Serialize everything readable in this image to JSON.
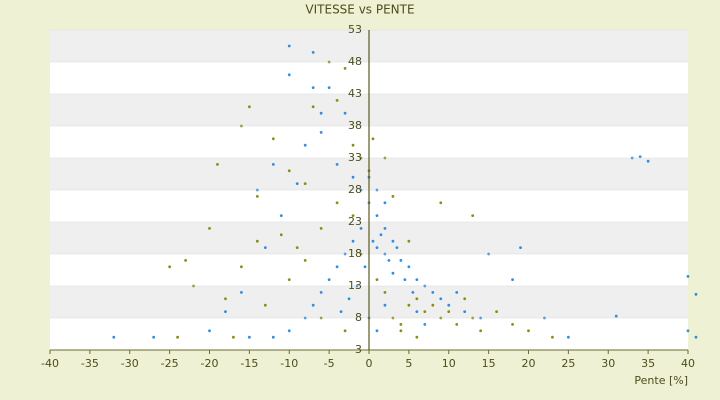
{
  "chart_data": {
    "type": "scatter",
    "title": "VITESSE vs PENTE",
    "x_label": "Pente [%]",
    "xlim": [
      -40,
      40
    ],
    "xticks": [
      -40,
      -35,
      -30,
      -25,
      -20,
      -15,
      -10,
      -5,
      0,
      5,
      10,
      15,
      20,
      25,
      30,
      35,
      40
    ],
    "ylim": [
      3,
      53
    ],
    "yticks": [
      3,
      8,
      13,
      18,
      23,
      28,
      33,
      38,
      43,
      48,
      53
    ],
    "grid": "bands",
    "series": [
      {
        "color": "#2f8ee0",
        "x": [
          -10,
          -7,
          -10,
          -5,
          -3,
          -6,
          -8,
          -4,
          -2,
          -1,
          0,
          1,
          2,
          3,
          1,
          2,
          4,
          5,
          3,
          6,
          7,
          8,
          9,
          10,
          12,
          14,
          -1,
          -2,
          -3,
          -4,
          -5,
          -6,
          -7,
          -8,
          -10,
          -12,
          -15,
          -20,
          -13,
          -11,
          -9,
          -12,
          -14,
          0,
          1,
          2,
          0.5,
          1.5,
          2.5,
          3.5,
          4.5,
          5.5,
          -0.5,
          -1.5,
          -2.5,
          -3.5,
          0,
          1,
          2,
          6,
          7,
          11,
          15,
          19,
          18,
          22,
          25,
          33,
          34,
          35,
          40,
          41,
          31,
          -32,
          -27,
          40,
          41,
          -18,
          -16,
          -7,
          -6
        ],
        "values": [
          50.5,
          49.5,
          46,
          44,
          40,
          37,
          35,
          32,
          30,
          28,
          26,
          24,
          22,
          20,
          19,
          18,
          17,
          16,
          15,
          14,
          13,
          12,
          11,
          10,
          9,
          8,
          22,
          20,
          18,
          16,
          14,
          12,
          10,
          8,
          6,
          5,
          5,
          6,
          19,
          24,
          29,
          32,
          28,
          30,
          28,
          26,
          20,
          21,
          17,
          19,
          14,
          12,
          16,
          13,
          11,
          9,
          8,
          6,
          10,
          9,
          7,
          12,
          18,
          19,
          14,
          8,
          5,
          33,
          33.2,
          32.5,
          14.5,
          11.7,
          8.3,
          5,
          5,
          6,
          5,
          9,
          12,
          44,
          40
        ]
      },
      {
        "color": "#8c8c12",
        "x": [
          -5,
          -3,
          -4,
          -7,
          -15,
          -16,
          -12,
          -19,
          -10,
          -8,
          -14,
          -20,
          -23,
          -25,
          -22,
          -18,
          -13,
          -6,
          -3,
          -24,
          -17,
          -11,
          -9,
          -2,
          -1,
          0,
          -4,
          -6,
          -8,
          -10,
          5,
          6,
          7,
          8,
          9,
          10,
          11,
          12,
          13,
          14,
          16,
          18,
          20,
          23,
          3,
          4,
          2,
          1,
          3,
          2,
          9,
          13,
          5,
          -1,
          -2,
          4,
          6,
          0.5,
          -14,
          -16
        ],
        "values": [
          48,
          47,
          42,
          41,
          41,
          38,
          36,
          32,
          31,
          29,
          27,
          22,
          17,
          16,
          13,
          11,
          10,
          8,
          6,
          5,
          5,
          21,
          19,
          35,
          33,
          31,
          26,
          22,
          17,
          14,
          10,
          11,
          9,
          10,
          8,
          9,
          7,
          11,
          8,
          6,
          9,
          7,
          6,
          5,
          8,
          7,
          12,
          14,
          27,
          33,
          26,
          24,
          20,
          18,
          24,
          6,
          5,
          36,
          20,
          16
        ]
      }
    ]
  }
}
